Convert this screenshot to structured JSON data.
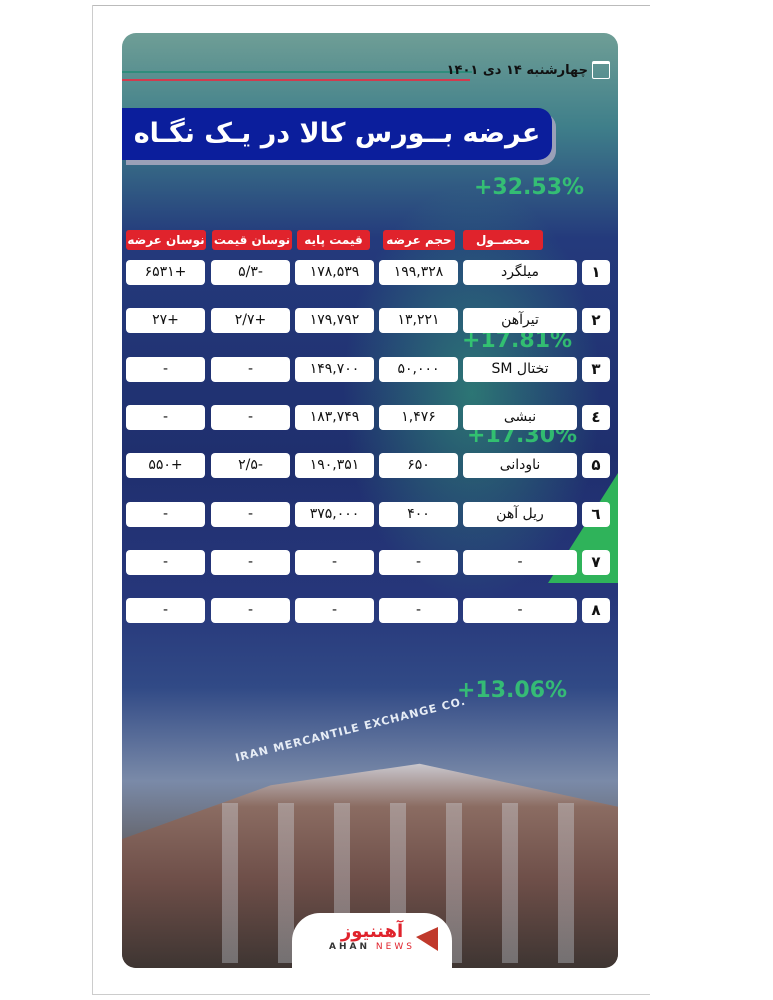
{
  "date": "چهارشنبه ۱۴ دی ۱۴۰۱",
  "title": "عرضه بــورس کالا در یـک نگـاه",
  "headers": {
    "product": "محصــول",
    "volume": "حجم عرضه",
    "base_price": "قیمت پایه",
    "price_change": "نوسان قیمت",
    "supply_change": "نوسان عرضه"
  },
  "rows": [
    {
      "index": "۱",
      "product": "میلگرد",
      "volume": "۱۹۹,۳۲۸",
      "base_price": "۱۷۸,۵۳۹",
      "price_change": "-۵/۳",
      "supply_change": "+۶۵۳۱"
    },
    {
      "index": "۲",
      "product": "تیرآهن",
      "volume": "۱۳,۲۲۱",
      "base_price": "۱۷۹,۷۹۲",
      "price_change": "+۲/۷",
      "supply_change": "+۲۷"
    },
    {
      "index": "۳",
      "product": "تختال SM",
      "volume": "۵۰,۰۰۰",
      "base_price": "۱۴۹,۷۰۰",
      "price_change": "-",
      "supply_change": "-"
    },
    {
      "index": "٤",
      "product": "نبشی",
      "volume": "۱,۴۷۶",
      "base_price": "۱۸۳,۷۴۹",
      "price_change": "-",
      "supply_change": "-"
    },
    {
      "index": "۵",
      "product": "ناودانی",
      "volume": "۶۵۰",
      "base_price": "۱۹۰,۳۵۱",
      "price_change": "-۲/۵",
      "supply_change": "+۵۵۰"
    },
    {
      "index": "٦",
      "product": "ریل آهن",
      "volume": "۴۰۰",
      "base_price": "۳۷۵,۰۰۰",
      "price_change": "-",
      "supply_change": "-"
    },
    {
      "index": "۷",
      "product": "-",
      "volume": "-",
      "base_price": "-",
      "price_change": "-",
      "supply_change": "-"
    },
    {
      "index": "۸",
      "product": "-",
      "volume": "-",
      "base_price": "-",
      "price_change": "-",
      "supply_change": "-"
    }
  ],
  "background_texts": {
    "p1": "+32.53%",
    "p2": "+17.81%",
    "p3": "+17.30%",
    "p4": "+13.06%",
    "building_sign": "IRAN MERCANTILE EXCHANGE CO."
  },
  "logo": {
    "fa_a": "آهن",
    "fa_b": "نیوز",
    "en_a": "AHAN",
    "en_b": "NEWS"
  },
  "colors": {
    "title_bg": "#0b1e9c",
    "header_bg": "#e0232c",
    "accent_green": "#2fb35a"
  }
}
